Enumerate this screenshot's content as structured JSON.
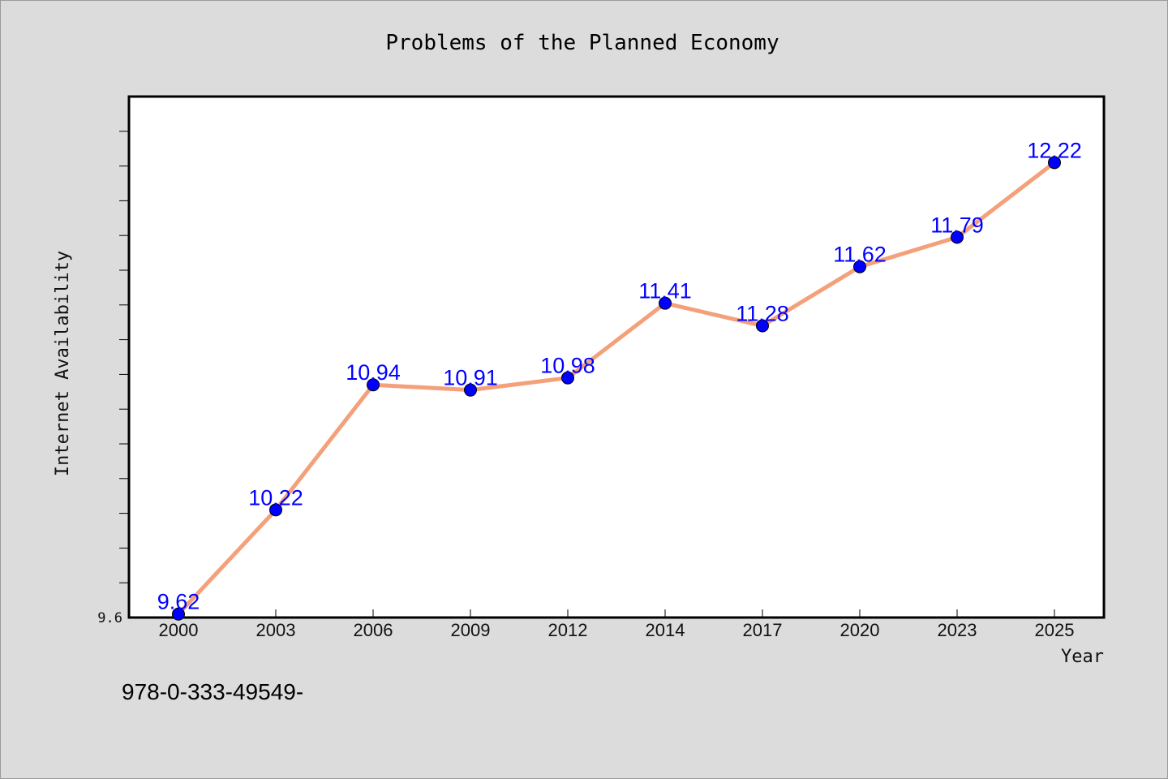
{
  "footer": {
    "text": "978-0-333-49549-"
  },
  "chart_data": {
    "type": "line",
    "title": "Problems of the Planned Economy",
    "xlabel": "Year",
    "ylabel": "Internet Availability",
    "categories": [
      "2000",
      "2003",
      "2006",
      "2009",
      "2012",
      "2014",
      "2017",
      "2020",
      "2023",
      "2025"
    ],
    "series": [
      {
        "values": [
          9.62,
          10.22,
          10.94,
          10.91,
          10.98,
          11.41,
          11.28,
          11.62,
          11.79,
          12.22
        ],
        "labels": [
          "9.62",
          "10.22",
          "10.94",
          "10.91",
          "10.98",
          "11.41",
          "11.28",
          "11.62",
          "11.79",
          "12.22"
        ],
        "line_color": "#f4a07a",
        "marker_color": "#0000ff"
      }
    ],
    "yticks": [
      "9.6"
    ],
    "ylim": [
      9.6,
      12.6
    ],
    "grid": false,
    "legend": "none",
    "colors": {
      "background": "#dcdcdc",
      "plot_area": "#ffffff",
      "label": "#0000ff"
    }
  }
}
